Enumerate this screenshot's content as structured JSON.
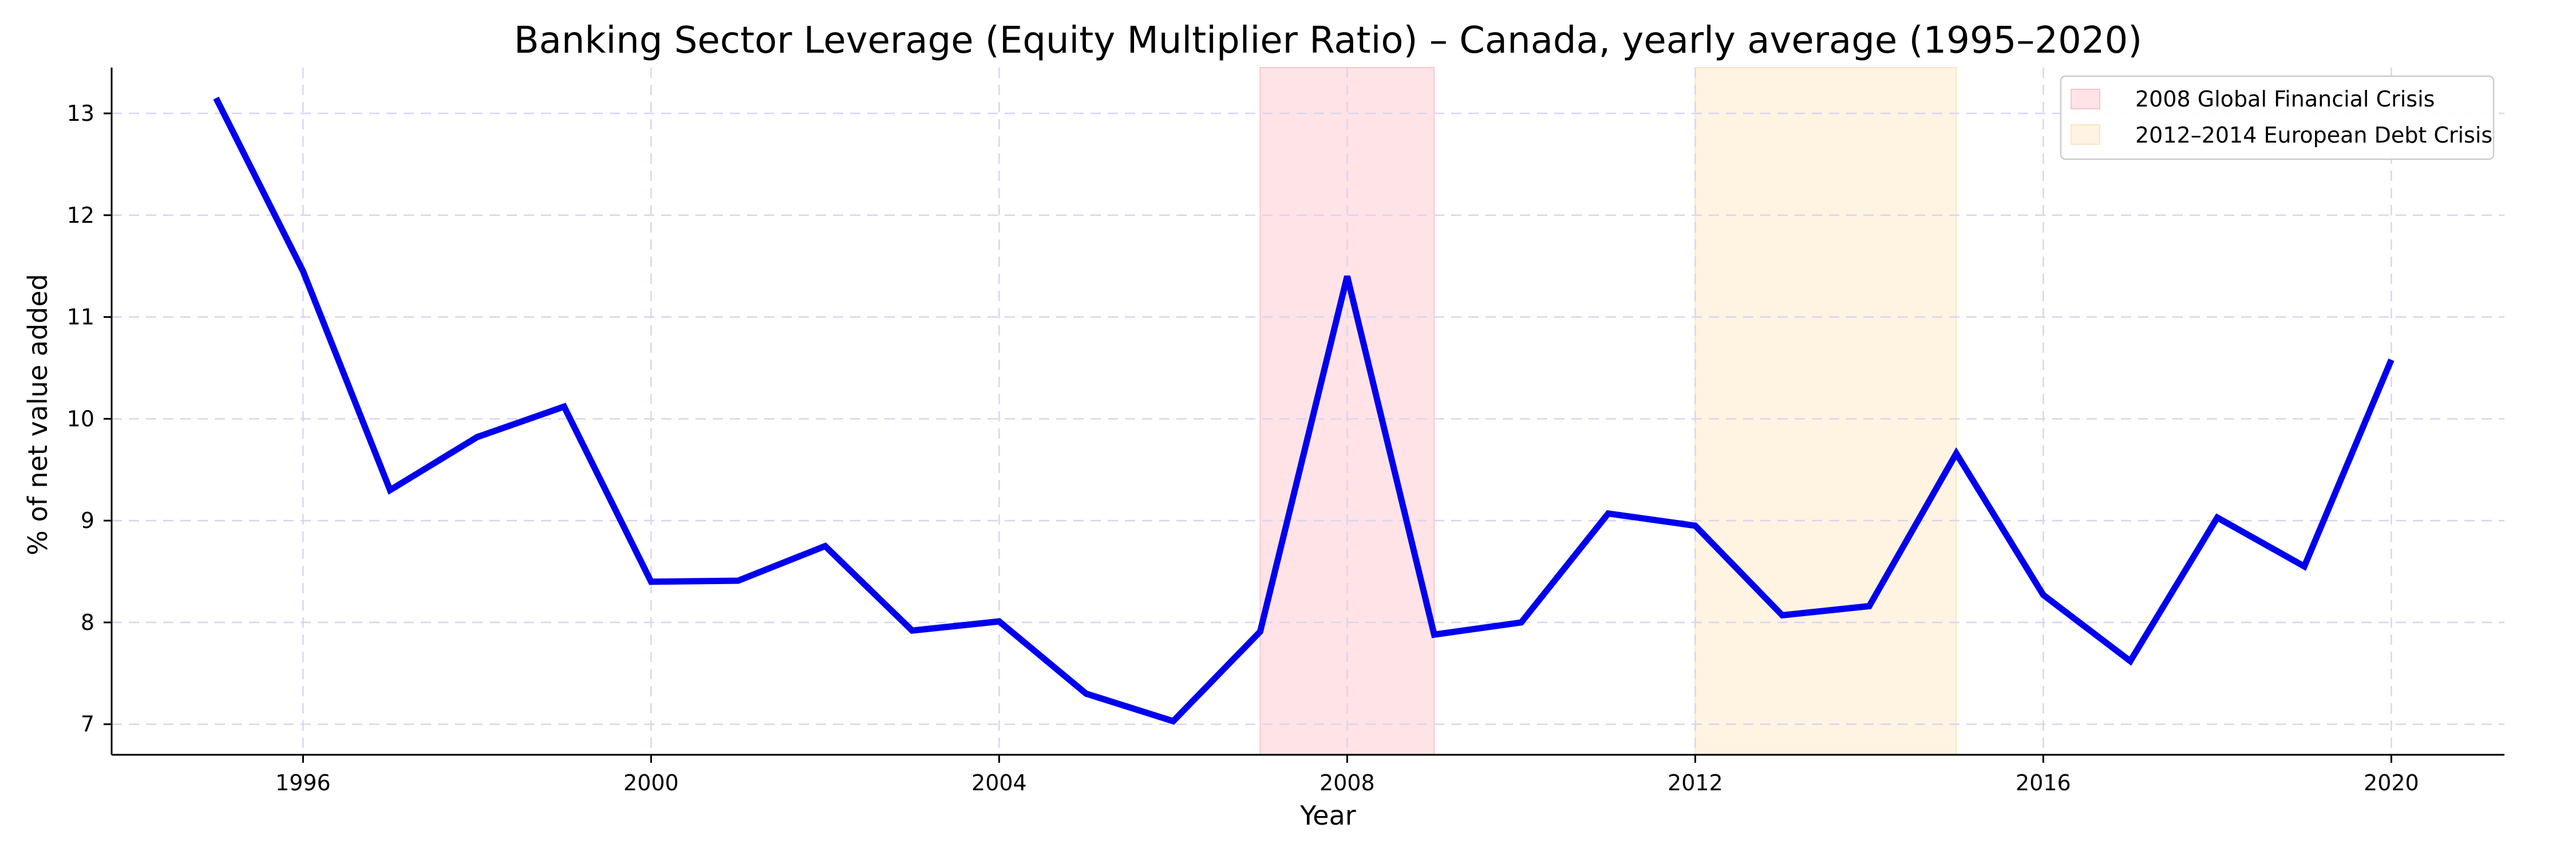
{
  "chart_data": {
    "type": "line",
    "title": "Banking Sector Leverage (Equity Multiplier Ratio) – Canada, yearly average (1995–2020)",
    "xlabel": "Year",
    "ylabel": "% of net value added",
    "xlim": [
      1993.8,
      2021.3
    ],
    "ylim": [
      6.7,
      13.45
    ],
    "grid": true,
    "legend_position": "top-right",
    "x_ticks": [
      1996,
      2000,
      2004,
      2008,
      2012,
      2016,
      2020
    ],
    "y_ticks": [
      7,
      8,
      9,
      10,
      11,
      12,
      13
    ],
    "series": [
      {
        "color": "#0000ee",
        "x": [
          1995,
          1996,
          1997,
          1998,
          1999,
          2000,
          2001,
          2002,
          2003,
          2004,
          2005,
          2006,
          2007,
          2008,
          2009,
          2010,
          2011,
          2012,
          2013,
          2014,
          2015,
          2016,
          2017,
          2018,
          2019,
          2020
        ],
        "y": [
          13.15,
          11.45,
          9.3,
          9.82,
          10.12,
          8.4,
          8.41,
          8.75,
          7.92,
          8.01,
          7.3,
          7.03,
          7.91,
          11.4,
          7.88,
          8.0,
          9.07,
          8.95,
          8.07,
          8.16,
          9.66,
          8.27,
          7.62,
          9.03,
          8.55,
          10.58
        ]
      }
    ],
    "shaded_regions": [
      {
        "label": "2008 Global Financial Crisis",
        "x_start": 2007,
        "x_end": 2009,
        "color": "#ffe3e6",
        "edge": "#f7c6cc"
      },
      {
        "label": "2012–2014 European Debt Crisis",
        "x_start": 2012,
        "x_end": 2015,
        "color": "#fff3e2",
        "edge": "#fbe4c3"
      }
    ]
  }
}
